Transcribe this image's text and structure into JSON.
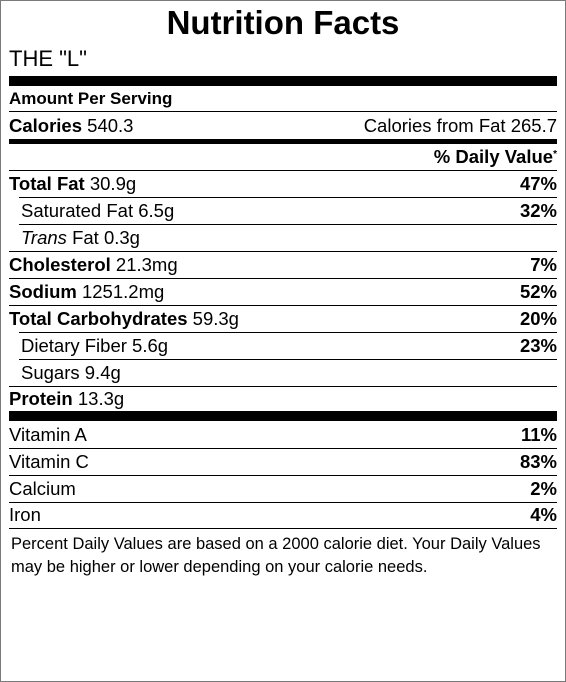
{
  "title": "Nutrition Facts",
  "recipe_name": "THE \"L\"",
  "amount_per_serving": "Amount Per Serving",
  "calories": {
    "label": "Calories",
    "value": "540.3"
  },
  "calories_from_fat": {
    "label": "Calories from Fat",
    "value": "265.7"
  },
  "daily_value_header": "% Daily Value",
  "daily_value_mark": "*",
  "nutrients": [
    {
      "label": "Total Fat",
      "amount": "30.9g",
      "pct": "47%"
    },
    {
      "prefix": "Saturated Fat",
      "amount": "6.5g",
      "pct": "32%"
    },
    {
      "italic": "Trans",
      "rest": "Fat",
      "amount": "0.3g",
      "pct": ""
    },
    {
      "label": "Cholesterol",
      "amount": "21.3mg",
      "pct": "7%"
    },
    {
      "label": "Sodium",
      "amount": "1251.2mg",
      "pct": "52%"
    },
    {
      "label": "Total Carbohydrates",
      "amount": "59.3g",
      "pct": "20%"
    },
    {
      "prefix": "Dietary Fiber",
      "amount": "5.6g",
      "pct": "23%"
    },
    {
      "prefix": "Sugars",
      "amount": "9.4g",
      "pct": ""
    },
    {
      "label": "Protein",
      "amount": "13.3g",
      "pct": ""
    }
  ],
  "vitamins": [
    {
      "label": "Vitamin A",
      "pct": "11%"
    },
    {
      "label": "Vitamin C",
      "pct": "83%"
    },
    {
      "label": "Calcium",
      "pct": "2%"
    },
    {
      "label": "Iron",
      "pct": "4%"
    }
  ],
  "footnote": "Percent Daily Values are based on a 2000 calorie diet. Your Daily Values may be higher or lower depending on your calorie needs."
}
